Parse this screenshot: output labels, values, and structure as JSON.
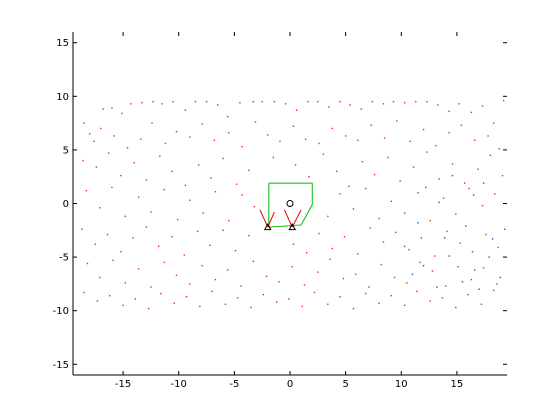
{
  "chart_data": {
    "type": "scatter",
    "title": "",
    "xlabel": "",
    "ylabel": "",
    "xlim": [
      -19.5,
      19.5
    ],
    "ylim": [
      -16,
      16
    ],
    "grid": false,
    "x_ticks": [
      -15,
      -10,
      -5,
      0,
      5,
      10,
      15
    ],
    "y_ticks": [
      -15,
      -10,
      -5,
      0,
      5,
      10,
      15
    ],
    "x_tick_labels": [
      "-15",
      "-10",
      "-5",
      "0",
      "5",
      "10",
      "15"
    ],
    "y_tick_labels": [
      "-15",
      "-10",
      "-5",
      "0",
      "5",
      "10",
      "15"
    ],
    "series": [
      {
        "marker": "dot",
        "color": "#e03030",
        "points": [
          [
            -18.5,
            7.5
          ],
          [
            -17.6,
            5.8
          ],
          [
            -16.8,
            8.8
          ],
          [
            -16.0,
            8.9
          ],
          [
            -15.1,
            8.4
          ],
          [
            -14.3,
            9.3
          ],
          [
            -13.3,
            9.4
          ],
          [
            -12.3,
            9.5
          ],
          [
            -11.5,
            9.3
          ],
          [
            -10.5,
            9.5
          ],
          [
            -9.4,
            8.7
          ],
          [
            -8.5,
            9.5
          ],
          [
            -7.5,
            9.5
          ],
          [
            -6.5,
            9.2
          ],
          [
            -5.6,
            8.1
          ],
          [
            -4.5,
            9.4
          ],
          [
            -3.3,
            9.5
          ],
          [
            -2.5,
            9.5
          ],
          [
            -1.4,
            9.5
          ],
          [
            -0.4,
            9.3
          ],
          [
            0.6,
            8.7
          ],
          [
            1.6,
            9.5
          ],
          [
            2.5,
            9.5
          ],
          [
            3.5,
            9.0
          ],
          [
            4.5,
            9.5
          ],
          [
            5.4,
            9.2
          ],
          [
            6.4,
            8.8
          ],
          [
            7.4,
            9.5
          ],
          [
            8.4,
            9.3
          ],
          [
            9.3,
            9.5
          ],
          [
            10.3,
            9.4
          ],
          [
            11.3,
            9.5
          ],
          [
            12.3,
            9.5
          ],
          [
            13.3,
            9.2
          ],
          [
            14.3,
            8.6
          ],
          [
            15.2,
            9.3
          ],
          [
            16.3,
            8.5
          ],
          [
            17.3,
            9.1
          ],
          [
            18.3,
            7.5
          ],
          [
            19.2,
            9.6
          ],
          [
            -18.0,
            6.5
          ],
          [
            -17.0,
            7.0
          ],
          [
            -15.8,
            6.3
          ],
          [
            -14.6,
            5.2
          ],
          [
            -13.4,
            6.0
          ],
          [
            -12.4,
            7.5
          ],
          [
            -11.2,
            5.6
          ],
          [
            -10.2,
            6.7
          ],
          [
            -9.0,
            6.2
          ],
          [
            -7.9,
            7.4
          ],
          [
            -6.8,
            5.9
          ],
          [
            -5.5,
            6.6
          ],
          [
            -4.3,
            5.3
          ],
          [
            -3.1,
            7.6
          ],
          [
            -2.0,
            6.4
          ],
          [
            -0.9,
            5.8
          ],
          [
            0.3,
            7.2
          ],
          [
            1.4,
            6.0
          ],
          [
            2.6,
            5.6
          ],
          [
            3.8,
            7.0
          ],
          [
            5.0,
            6.3
          ],
          [
            6.1,
            5.9
          ],
          [
            7.3,
            7.3
          ],
          [
            8.5,
            6.1
          ],
          [
            9.6,
            7.7
          ],
          [
            10.8,
            5.8
          ],
          [
            12.0,
            6.9
          ],
          [
            13.1,
            5.4
          ],
          [
            14.3,
            6.6
          ],
          [
            15.4,
            7.3
          ],
          [
            16.6,
            5.9
          ],
          [
            17.8,
            6.3
          ],
          [
            18.8,
            5.1
          ],
          [
            -18.6,
            4.0
          ],
          [
            -17.4,
            3.4
          ],
          [
            -16.3,
            4.7
          ],
          [
            -15.2,
            2.6
          ],
          [
            -14.0,
            3.8
          ],
          [
            -12.9,
            2.2
          ],
          [
            -11.7,
            4.4
          ],
          [
            -10.6,
            3.0
          ],
          [
            -9.4,
            1.7
          ],
          [
            -8.2,
            3.6
          ],
          [
            -7.1,
            2.4
          ],
          [
            -6.0,
            4.2
          ],
          [
            -4.8,
            1.8
          ],
          [
            -3.7,
            3.1
          ],
          [
            -1.5,
            4.3
          ],
          [
            0.5,
            3.6
          ],
          [
            1.7,
            2.5
          ],
          [
            3.0,
            4.6
          ],
          [
            4.2,
            3.0
          ],
          [
            5.3,
            1.6
          ],
          [
            6.5,
            3.9
          ],
          [
            7.6,
            2.7
          ],
          [
            8.8,
            4.3
          ],
          [
            9.9,
            2.1
          ],
          [
            11.1,
            3.4
          ],
          [
            12.3,
            4.8
          ],
          [
            13.4,
            2.3
          ],
          [
            14.6,
            3.7
          ],
          [
            15.7,
            1.9
          ],
          [
            16.9,
            3.2
          ],
          [
            18.0,
            4.5
          ],
          [
            19.1,
            2.6
          ],
          [
            -18.3,
            1.2
          ],
          [
            -17.1,
            -0.4
          ],
          [
            -16.0,
            1.5
          ],
          [
            -14.8,
            -1.2
          ],
          [
            -13.6,
            0.6
          ],
          [
            -12.5,
            -0.8
          ],
          [
            -11.3,
            1.3
          ],
          [
            -10.1,
            -1.5
          ],
          [
            -9.0,
            0.3
          ],
          [
            -7.8,
            -0.9
          ],
          [
            -6.7,
            1.1
          ],
          [
            -5.5,
            -1.6
          ],
          [
            -4.3,
            0.8
          ],
          [
            -3.2,
            -0.3
          ],
          [
            3.4,
            -1.2
          ],
          [
            4.5,
            0.9
          ],
          [
            5.7,
            -0.5
          ],
          [
            6.8,
            1.4
          ],
          [
            8.0,
            -1.4
          ],
          [
            9.1,
            0.2
          ],
          [
            10.3,
            -0.9
          ],
          [
            11.5,
            1.0
          ],
          [
            12.6,
            -1.6
          ],
          [
            13.8,
            0.5
          ],
          [
            14.9,
            -1.0
          ],
          [
            16.1,
            1.4
          ],
          [
            17.3,
            -0.2
          ],
          [
            18.4,
            0.9
          ],
          [
            -18.7,
            -2.4
          ],
          [
            -17.5,
            -3.8
          ],
          [
            -16.4,
            -2.9
          ],
          [
            -15.2,
            -4.5
          ],
          [
            -14.1,
            -3.2
          ],
          [
            -12.9,
            -2.2
          ],
          [
            -11.8,
            -4.0
          ],
          [
            -10.6,
            -3.1
          ],
          [
            -9.5,
            -4.8
          ],
          [
            -8.3,
            -2.6
          ],
          [
            -7.2,
            -3.9
          ],
          [
            -6.0,
            -2.5
          ],
          [
            -4.9,
            -4.4
          ],
          [
            -3.7,
            -3.0
          ],
          [
            0.3,
            -3.8
          ],
          [
            1.5,
            -4.6
          ],
          [
            2.6,
            -2.8
          ],
          [
            3.8,
            -4.2
          ],
          [
            4.9,
            -3.1
          ],
          [
            6.1,
            -4.7
          ],
          [
            7.2,
            -2.3
          ],
          [
            8.4,
            -3.6
          ],
          [
            9.5,
            -2.7
          ],
          [
            10.7,
            -4.3
          ],
          [
            11.8,
            -3.2
          ],
          [
            13.0,
            -4.9
          ],
          [
            14.1,
            -2.6
          ],
          [
            15.3,
            -3.7
          ],
          [
            16.4,
            -4.5
          ],
          [
            17.6,
            -2.9
          ],
          [
            18.7,
            -4.1
          ],
          [
            -18.2,
            -5.6
          ],
          [
            -17.1,
            -6.9
          ],
          [
            -15.9,
            -5.3
          ],
          [
            -14.8,
            -7.4
          ],
          [
            -13.6,
            -6.1
          ],
          [
            -12.5,
            -7.8
          ],
          [
            -11.3,
            -5.5
          ],
          [
            -10.2,
            -6.7
          ],
          [
            -9.0,
            -7.5
          ],
          [
            -7.9,
            -5.8
          ],
          [
            -6.7,
            -7.1
          ],
          [
            -5.6,
            -6.2
          ],
          [
            -4.4,
            -7.7
          ],
          [
            -3.3,
            -5.4
          ],
          [
            -2.1,
            -6.8
          ],
          [
            -1.0,
            -7.3
          ],
          [
            0.2,
            -5.9
          ],
          [
            1.3,
            -7.6
          ],
          [
            2.5,
            -6.4
          ],
          [
            3.6,
            -5.2
          ],
          [
            4.8,
            -7.0
          ],
          [
            5.9,
            -6.6
          ],
          [
            7.1,
            -7.8
          ],
          [
            8.2,
            -5.7
          ],
          [
            9.4,
            -6.9
          ],
          [
            10.5,
            -7.4
          ],
          [
            11.7,
            -5.5
          ],
          [
            12.8,
            -6.3
          ],
          [
            14.0,
            -7.7
          ],
          [
            15.1,
            -5.9
          ],
          [
            16.3,
            -7.1
          ],
          [
            17.4,
            -6.0
          ],
          [
            18.6,
            -7.5
          ],
          [
            -18.5,
            -8.3
          ],
          [
            -17.3,
            -9.1
          ],
          [
            -16.2,
            -8.6
          ],
          [
            -15.0,
            -9.5
          ],
          [
            -13.9,
            -8.9
          ],
          [
            -12.7,
            -9.8
          ],
          [
            -11.6,
            -8.4
          ],
          [
            -10.4,
            -9.3
          ],
          [
            -9.3,
            -8.7
          ],
          [
            -8.1,
            -9.6
          ],
          [
            -7.0,
            -8.2
          ],
          [
            -5.8,
            -9.4
          ],
          [
            -4.7,
            -8.8
          ],
          [
            -3.5,
            -9.7
          ],
          [
            -2.4,
            -8.5
          ],
          [
            -1.2,
            -9.2
          ],
          [
            -0.1,
            -8.9
          ],
          [
            1.1,
            -9.6
          ],
          [
            2.2,
            -8.3
          ],
          [
            3.4,
            -9.4
          ],
          [
            4.5,
            -8.7
          ],
          [
            5.7,
            -9.8
          ],
          [
            6.8,
            -8.4
          ],
          [
            8.0,
            -9.3
          ],
          [
            9.1,
            -8.6
          ],
          [
            10.3,
            -9.5
          ],
          [
            11.4,
            -8.2
          ],
          [
            12.6,
            -9.1
          ],
          [
            13.7,
            -8.8
          ],
          [
            14.9,
            -9.7
          ],
          [
            16.0,
            -8.5
          ],
          [
            17.2,
            -9.4
          ],
          [
            18.3,
            -8.1
          ]
        ]
      },
      {
        "marker": "dot",
        "color": "#3050d0",
        "points": [
          [
            12.2,
            1.5
          ],
          [
            13.4,
            0.1
          ],
          [
            14.6,
            2.6
          ],
          [
            16.5,
            0.8
          ],
          [
            17.4,
            1.9
          ],
          [
            11.5,
            -1.8
          ],
          [
            13.9,
            -3.2
          ],
          [
            15.8,
            -2.1
          ],
          [
            18.2,
            -3.3
          ],
          [
            10.3,
            -4.0
          ],
          [
            12.0,
            -5.8
          ],
          [
            14.3,
            -4.9
          ],
          [
            16.6,
            -6.2
          ],
          [
            17.9,
            -5.0
          ],
          [
            11.0,
            -6.6
          ],
          [
            13.2,
            -7.8
          ],
          [
            15.5,
            -7.3
          ],
          [
            17.0,
            -8.0
          ],
          [
            18.9,
            -6.9
          ],
          [
            19.3,
            -2.4
          ]
        ]
      }
    ],
    "annotations": {
      "robot_outline": {
        "color": "#00bb00",
        "points": [
          [
            -1.9,
            1.9
          ],
          [
            2.0,
            1.9
          ],
          [
            2.0,
            -0.1
          ],
          [
            1.0,
            -2.0
          ],
          [
            -1.9,
            -2.2
          ],
          [
            -1.9,
            1.9
          ]
        ]
      },
      "robot_center": {
        "x": 0.0,
        "y": 0.0,
        "marker": "circle",
        "color": "#000000"
      },
      "sensors": [
        {
          "x": -2.0,
          "y": -2.2,
          "marker": "triangle",
          "color": "#000000"
        },
        {
          "x": 0.2,
          "y": -2.2,
          "marker": "triangle",
          "color": "#000000"
        }
      ],
      "sensor_rays": [
        {
          "from": [
            -2.0,
            -2.2
          ],
          "to": [
            -2.7,
            -0.6
          ],
          "color": "#dd0000"
        },
        {
          "from": [
            -2.0,
            -2.2
          ],
          "to": [
            -1.4,
            -0.8
          ],
          "color": "#dd0000"
        },
        {
          "from": [
            0.2,
            -2.2
          ],
          "to": [
            -0.5,
            -0.6
          ],
          "color": "#dd0000"
        },
        {
          "from": [
            0.2,
            -2.2
          ],
          "to": [
            1.0,
            -0.6
          ],
          "color": "#dd0000"
        }
      ]
    }
  }
}
